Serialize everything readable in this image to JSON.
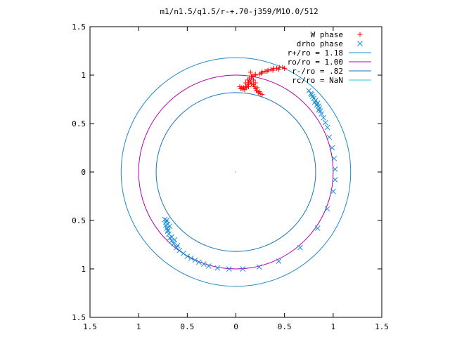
{
  "chart_data": {
    "type": "scatter",
    "title": "m1/n1.5/q1.5/r-+.70-j359/M10.0/512",
    "xlabel": "",
    "ylabel": "",
    "xlim": [
      -1.5,
      1.5
    ],
    "ylim": [
      -1.5,
      1.5
    ],
    "x_ticks": [
      {
        "value": -1.5,
        "label": "1.5"
      },
      {
        "value": -1.0,
        "label": "1"
      },
      {
        "value": -0.5,
        "label": "0.5"
      },
      {
        "value": 0.0,
        "label": "0"
      },
      {
        "value": 0.5,
        "label": "0.5"
      },
      {
        "value": 1.0,
        "label": "1"
      },
      {
        "value": 1.5,
        "label": "1.5"
      }
    ],
    "y_ticks": [
      {
        "value": 1.5,
        "label": "1.5"
      },
      {
        "value": 1.0,
        "label": "1"
      },
      {
        "value": 0.5,
        "label": "0.5"
      },
      {
        "value": 0.0,
        "label": "0"
      },
      {
        "value": -0.5,
        "label": "0.5"
      },
      {
        "value": -1.0,
        "label": "1"
      },
      {
        "value": -1.5,
        "label": "1.5"
      }
    ],
    "grid": false,
    "legend_position": "top-right",
    "series": [
      {
        "name": "W phase",
        "marker": "plus",
        "color": "#ff0000",
        "points": [
          [
            0.14,
            0.97
          ],
          [
            0.17,
            0.99
          ],
          [
            0.2,
            1.0
          ],
          [
            0.24,
            1.01
          ],
          [
            0.27,
            1.03
          ],
          [
            0.3,
            1.04
          ],
          [
            0.33,
            1.05
          ],
          [
            0.36,
            1.06
          ],
          [
            0.39,
            1.07
          ],
          [
            0.42,
            1.07
          ],
          [
            0.45,
            1.08
          ],
          [
            0.48,
            1.08
          ],
          [
            0.5,
            1.07
          ],
          [
            0.44,
            1.06
          ],
          [
            0.38,
            1.05
          ],
          [
            0.32,
            1.04
          ],
          [
            0.26,
            1.02
          ],
          [
            0.2,
            1.01
          ],
          [
            0.16,
            0.99
          ],
          [
            0.15,
            1.03
          ],
          [
            0.14,
            0.95
          ],
          [
            0.15,
            0.93
          ],
          [
            0.16,
            0.91
          ],
          [
            0.18,
            0.9
          ],
          [
            0.19,
            0.88
          ],
          [
            0.2,
            0.86
          ],
          [
            0.21,
            0.84
          ],
          [
            0.23,
            0.82
          ],
          [
            0.25,
            0.81
          ],
          [
            0.27,
            0.8
          ],
          [
            0.12,
            0.95
          ],
          [
            0.13,
            0.92
          ],
          [
            0.12,
            0.9
          ],
          [
            0.1,
            0.88
          ],
          [
            0.08,
            0.87
          ],
          [
            0.06,
            0.87
          ],
          [
            0.04,
            0.88
          ],
          [
            0.07,
            0.86
          ],
          [
            0.11,
            0.87
          ],
          [
            0.1,
            0.92
          ],
          [
            0.16,
            0.97
          ],
          [
            0.18,
            0.95
          ],
          [
            0.2,
            0.92
          ],
          [
            0.09,
            0.85
          ],
          [
            0.13,
            0.88
          ],
          [
            0.22,
            0.87
          ],
          [
            0.05,
            0.86
          ],
          [
            0.24,
            0.83
          ]
        ]
      },
      {
        "name": "drho phase",
        "marker": "cross",
        "color": "#1e90d8",
        "points": [
          [
            0.75,
            0.84
          ],
          [
            0.77,
            0.81
          ],
          [
            0.79,
            0.78
          ],
          [
            0.8,
            0.76
          ],
          [
            0.82,
            0.74
          ],
          [
            0.84,
            0.71
          ],
          [
            0.85,
            0.68
          ],
          [
            0.86,
            0.66
          ],
          [
            0.87,
            0.63
          ],
          [
            0.88,
            0.6
          ],
          [
            0.9,
            0.56
          ],
          [
            0.92,
            0.51
          ],
          [
            0.94,
            0.46
          ],
          [
            0.96,
            0.36
          ],
          [
            0.99,
            0.25
          ],
          [
            1.01,
            0.14
          ],
          [
            1.02,
            0.03
          ],
          [
            1.02,
            -0.08
          ],
          [
            1.0,
            -0.2
          ],
          [
            0.94,
            -0.38
          ],
          [
            0.84,
            -0.58
          ],
          [
            0.66,
            -0.78
          ],
          [
            0.44,
            -0.92
          ],
          [
            0.24,
            -0.98
          ],
          [
            0.07,
            -1.0
          ],
          [
            -0.07,
            -1.0
          ],
          [
            -0.19,
            -0.99
          ],
          [
            -0.28,
            -0.97
          ],
          [
            -0.33,
            -0.95
          ],
          [
            -0.38,
            -0.93
          ],
          [
            -0.42,
            -0.91
          ],
          [
            -0.46,
            -0.89
          ],
          [
            -0.5,
            -0.87
          ],
          [
            -0.54,
            -0.84
          ],
          [
            -0.58,
            -0.81
          ],
          [
            -0.61,
            -0.78
          ],
          [
            -0.64,
            -0.74
          ],
          [
            -0.66,
            -0.71
          ],
          [
            -0.68,
            -0.68
          ],
          [
            -0.69,
            -0.64
          ],
          [
            -0.7,
            -0.61
          ],
          [
            -0.71,
            -0.58
          ],
          [
            -0.72,
            -0.55
          ],
          [
            -0.72,
            -0.52
          ],
          [
            -0.71,
            -0.5
          ],
          [
            -0.7,
            -0.54
          ],
          [
            -0.68,
            -0.56
          ],
          [
            -0.73,
            -0.49
          ],
          [
            -0.7,
            -0.6
          ],
          [
            -0.66,
            -0.67
          ],
          [
            -0.63,
            -0.7
          ],
          [
            -0.6,
            -0.76
          ],
          [
            0.81,
            0.72
          ],
          [
            0.78,
            0.8
          ],
          [
            0.83,
            0.69
          ],
          [
            0.85,
            0.64
          ]
        ]
      }
    ],
    "circles": [
      {
        "name": "r+/ro = 1.18",
        "radius": 1.18,
        "color": "#1f8ac8"
      },
      {
        "name": "ro/ro = 1.00",
        "radius": 1.0,
        "color": "#b000b0"
      },
      {
        "name": "r-/ro = .82",
        "radius": 0.82,
        "color": "#1878b8"
      },
      {
        "name": "rc/ro = NaN",
        "radius": null,
        "color": "#20c8e8"
      }
    ]
  }
}
